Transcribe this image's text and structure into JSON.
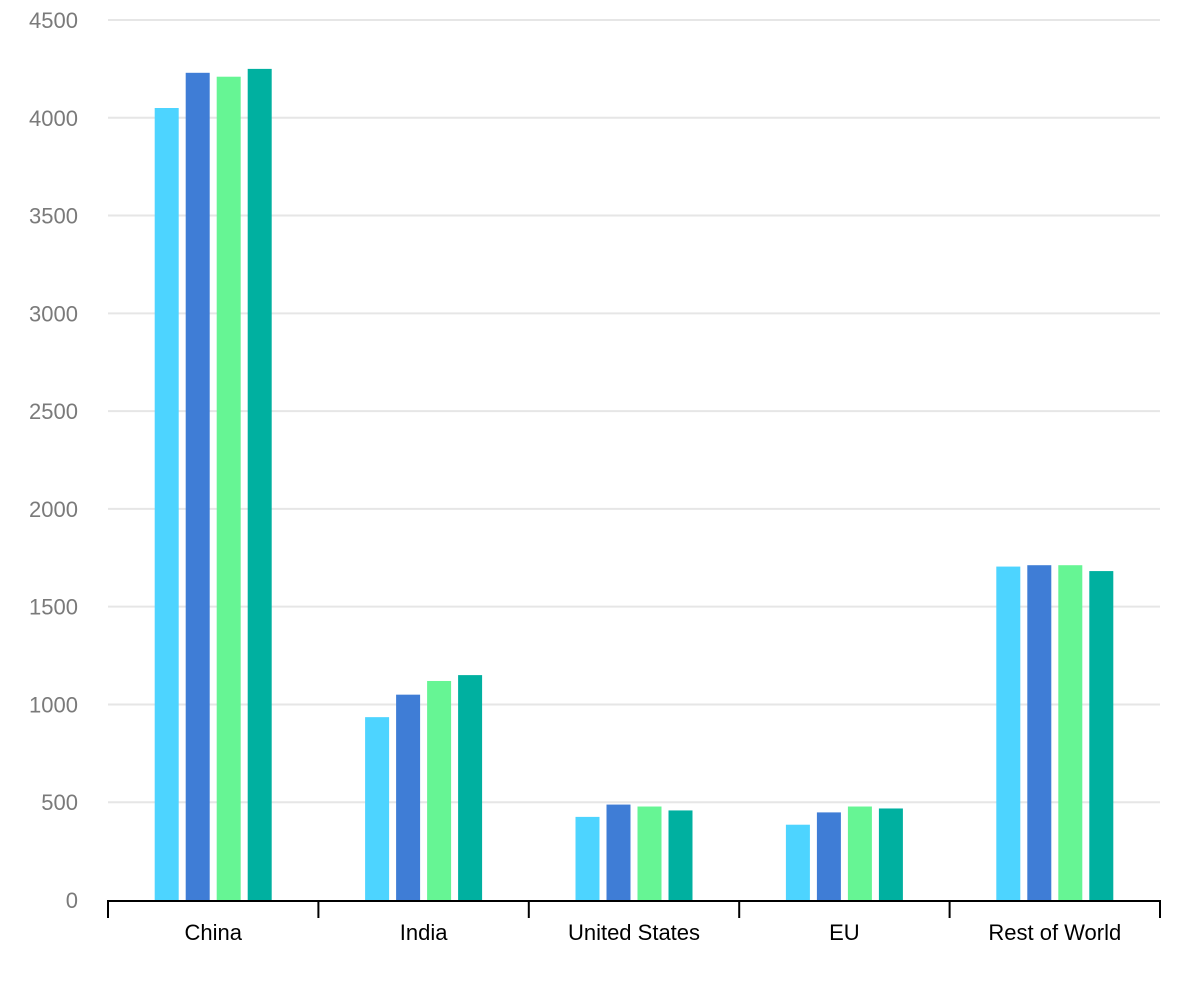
{
  "chart_data": {
    "type": "bar",
    "categories": [
      "China",
      "India",
      "United States",
      "EU",
      "Rest of World"
    ],
    "series": [
      {
        "values": [
          4050,
          935,
          425,
          385,
          1705
        ],
        "color": "#4dd4ff"
      },
      {
        "values": [
          4230,
          1050,
          488,
          448,
          1712
        ],
        "color": "#3f7dd6"
      },
      {
        "values": [
          4210,
          1120,
          478,
          478,
          1712
        ],
        "color": "#66f594"
      },
      {
        "values": [
          4250,
          1150,
          458,
          468,
          1682
        ],
        "color": "#00b0a0"
      }
    ],
    "ylim": [
      0,
      4500
    ],
    "yticks": [
      0,
      500,
      1000,
      1500,
      2000,
      2500,
      3000,
      3500,
      4000,
      4500
    ],
    "grid": true,
    "title": "",
    "xlabel": "",
    "ylabel": ""
  }
}
